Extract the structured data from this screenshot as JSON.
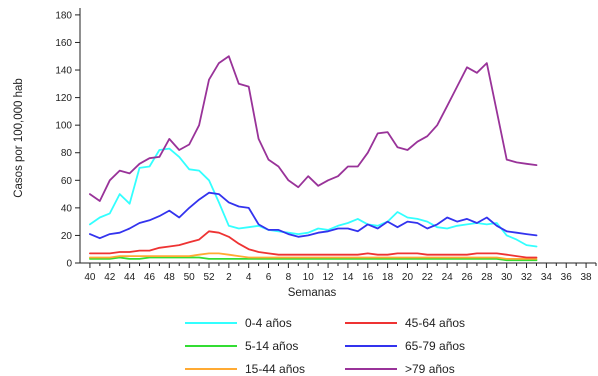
{
  "chart_data": {
    "type": "line",
    "title": "",
    "xlabel": "Semanas",
    "ylabel": "Casos por 100,000 hab",
    "ylim": [
      0,
      185
    ],
    "yticks": [
      0,
      20,
      40,
      60,
      80,
      100,
      120,
      140,
      160,
      180
    ],
    "x_tick_labels": [
      "40",
      "42",
      "44",
      "46",
      "48",
      "50",
      "52",
      "2",
      "4",
      "6",
      "8",
      "10",
      "12",
      "14",
      "16",
      "18",
      "20",
      "22",
      "24",
      "26",
      "28",
      "30",
      "32",
      "34",
      "36",
      "38"
    ],
    "x_total_weeks": 52,
    "grid": false,
    "legend_position": "bottom",
    "series": [
      {
        "name": "0-4 años",
        "color": "#33ffff",
        "values": [
          28,
          33,
          36,
          50,
          43,
          69,
          70,
          82,
          83,
          77,
          68,
          67,
          60,
          44,
          27,
          25,
          26,
          27,
          24,
          23,
          22,
          21,
          22,
          25,
          24,
          27,
          29,
          32,
          28,
          27,
          30,
          37,
          33,
          32,
          30,
          26,
          25,
          27,
          28,
          29,
          28,
          29,
          20,
          17,
          13,
          12
        ]
      },
      {
        "name": "5-14 años",
        "color": "#33dd33",
        "values": [
          3,
          3,
          3,
          4,
          3,
          3,
          4,
          4,
          4,
          4,
          4,
          4,
          3,
          3,
          3,
          3,
          3,
          3,
          3,
          3,
          3,
          3,
          3,
          3,
          3,
          3,
          3,
          3,
          3,
          3,
          3,
          3,
          3,
          3,
          3,
          3,
          3,
          3,
          3,
          3,
          3,
          3,
          2,
          2,
          2,
          2
        ]
      },
      {
        "name": "15-44 años",
        "color": "#ffaa33",
        "values": [
          4,
          4,
          4,
          5,
          5,
          5,
          5,
          5,
          5,
          5,
          5,
          6,
          7,
          7,
          6,
          5,
          4,
          4,
          4,
          4,
          4,
          4,
          4,
          4,
          4,
          4,
          4,
          4,
          4,
          4,
          4,
          4,
          4,
          4,
          4,
          4,
          4,
          4,
          4,
          4,
          4,
          4,
          3,
          3,
          3,
          3
        ]
      },
      {
        "name": "45-64 años",
        "color": "#ee3333",
        "values": [
          7,
          7,
          7,
          8,
          8,
          9,
          9,
          11,
          12,
          13,
          15,
          17,
          23,
          22,
          19,
          14,
          10,
          8,
          7,
          6,
          6,
          6,
          6,
          6,
          6,
          6,
          6,
          6,
          7,
          6,
          6,
          7,
          7,
          7,
          6,
          6,
          6,
          6,
          6,
          7,
          7,
          7,
          6,
          5,
          4,
          4
        ]
      },
      {
        "name": "65-79 años",
        "color": "#3333ee",
        "values": [
          21,
          18,
          21,
          22,
          25,
          29,
          31,
          34,
          38,
          33,
          40,
          46,
          51,
          50,
          44,
          41,
          40,
          28,
          24,
          24,
          21,
          19,
          20,
          22,
          23,
          25,
          25,
          23,
          28,
          25,
          30,
          26,
          30,
          29,
          25,
          28,
          33,
          30,
          32,
          29,
          33,
          27,
          23,
          22,
          21,
          20
        ]
      },
      {
        "name": ">79 años",
        "color": "#993399",
        "values": [
          50,
          45,
          60,
          67,
          65,
          72,
          76,
          77,
          90,
          82,
          86,
          100,
          133,
          145,
          150,
          130,
          128,
          90,
          75,
          70,
          60,
          55,
          63,
          56,
          60,
          63,
          70,
          70,
          80,
          94,
          95,
          84,
          82,
          88,
          92,
          100,
          114,
          128,
          142,
          138,
          145,
          110,
          75,
          73,
          72,
          71
        ]
      }
    ]
  }
}
